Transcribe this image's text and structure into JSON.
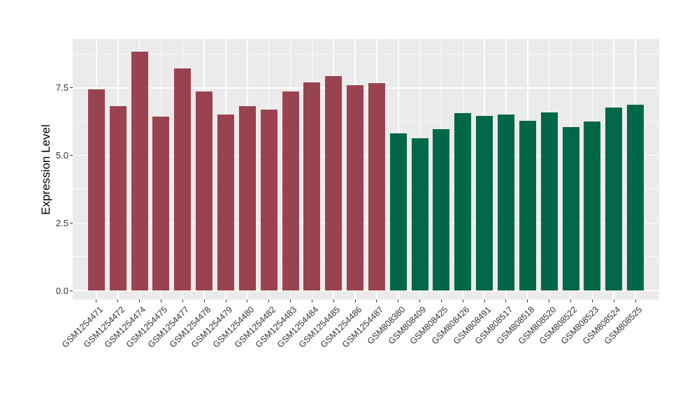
{
  "chart": {
    "panel_bg": "#EBEBEB",
    "grid_color": "#FFFFFF",
    "tick_color": "#333333",
    "axis_text_color": "#333333",
    "y_tick_labels": [
      "0.0",
      "2.5",
      "5.0",
      "7.5"
    ]
  },
  "chart_data": {
    "type": "bar",
    "title": "",
    "xlabel": "",
    "ylabel": "Expression Level",
    "ylim": [
      -0.34,
      9.31
    ],
    "y_ticks": [
      0.0,
      2.5,
      5.0,
      7.5
    ],
    "y_minor_ticks": [
      1.25,
      3.75,
      6.25,
      8.75
    ],
    "grid": true,
    "legend": "none",
    "categories": [
      "GSM1254471",
      "GSM1254472",
      "GSM1254474",
      "GSM1254475",
      "GSM1254477",
      "GSM1254478",
      "GSM1254479",
      "GSM1254480",
      "GSM1254482",
      "GSM1254483",
      "GSM1254484",
      "GSM1254485",
      "GSM1254486",
      "GSM1254487",
      "GSM808380",
      "GSM808409",
      "GSM808425",
      "GSM808426",
      "GSM808491",
      "GSM808517",
      "GSM808518",
      "GSM808520",
      "GSM808522",
      "GSM808523",
      "GSM808524",
      "GSM808525"
    ],
    "values": [
      7.46,
      6.83,
      8.85,
      6.44,
      8.22,
      7.37,
      6.53,
      6.82,
      6.69,
      7.37,
      7.7,
      7.95,
      7.6,
      7.69,
      5.83,
      5.65,
      5.97,
      6.58,
      6.47,
      6.51,
      6.28,
      6.6,
      6.04,
      6.27,
      6.77,
      6.88
    ],
    "groups": [
      "group1",
      "group1",
      "group1",
      "group1",
      "group1",
      "group1",
      "group1",
      "group1",
      "group1",
      "group1",
      "group1",
      "group1",
      "group1",
      "group1",
      "group2",
      "group2",
      "group2",
      "group2",
      "group2",
      "group2",
      "group2",
      "group2",
      "group2",
      "group2",
      "group2",
      "group2"
    ],
    "group_colors": {
      "group1": "#9A4350",
      "group2": "#006748"
    }
  }
}
